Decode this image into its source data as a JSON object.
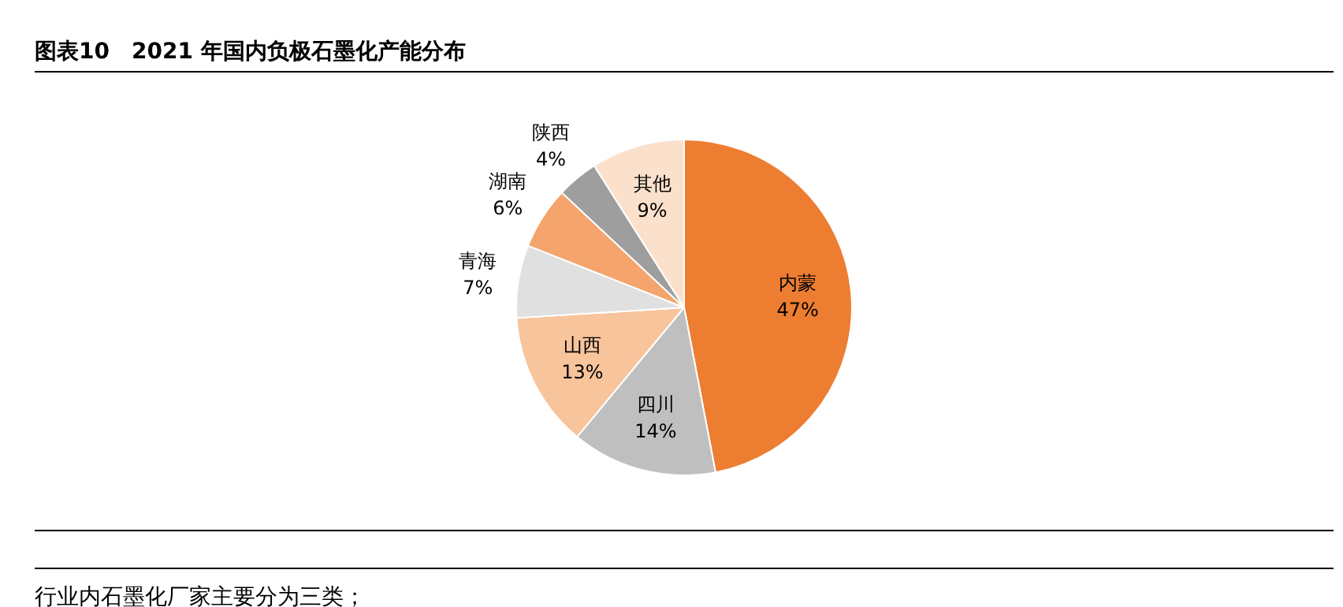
{
  "chart_data": {
    "type": "pie",
    "title": "图表10　2021 年国内负极石墨化产能分布",
    "categories": [
      "内蒙",
      "四川",
      "山西",
      "青海",
      "湖南",
      "陕西",
      "其他"
    ],
    "values": [
      47,
      14,
      13,
      7,
      6,
      4,
      9
    ],
    "value_labels": [
      "47%",
      "14%",
      "13%",
      "7%",
      "6%",
      "4%",
      "9%"
    ],
    "colors": [
      "#ed7d31",
      "#bfbfbf",
      "#f8c49c",
      "#e0e0e0",
      "#f4a46c",
      "#9e9e9e",
      "#fbe0cc"
    ],
    "legend": false,
    "annotations": [
      "行业内石墨化厂家主要分为三类；"
    ]
  }
}
